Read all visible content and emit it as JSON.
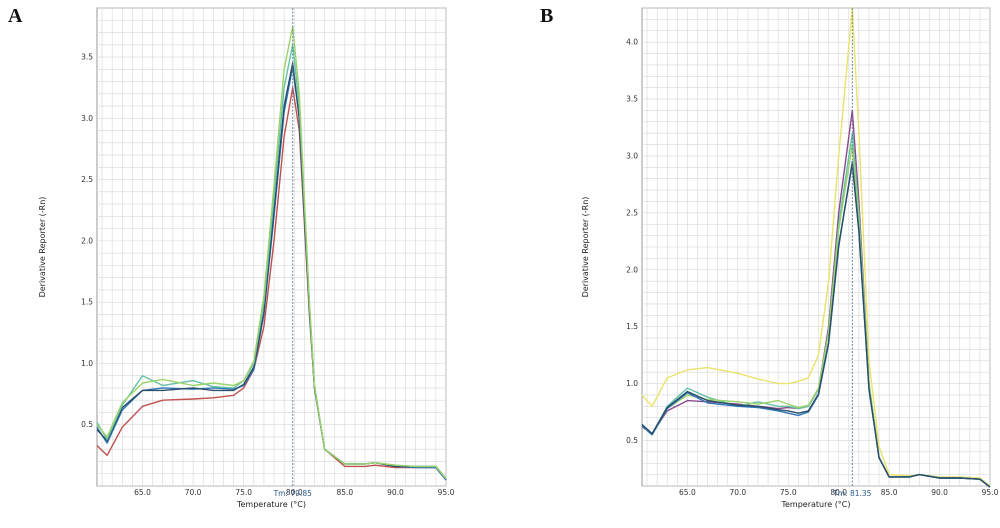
{
  "chart_data": [
    {
      "type": "line",
      "panel_label": "A",
      "xlabel": "Temperature (°C)",
      "ylabel": "Derivative Reporter (-Rn)",
      "xlim": [
        60.5,
        95.0
      ],
      "ylim": [
        0.0,
        3.9
      ],
      "xticks": [
        65.0,
        70.0,
        75.0,
        80.0,
        85.0,
        90.0,
        95.0
      ],
      "xtick_labels": [
        "65.0",
        "70.0",
        "75.0",
        "80.0",
        "85.0",
        "90.0",
        "95.0"
      ],
      "yticks": [
        0.5,
        1.0,
        1.5,
        2.0,
        2.5,
        3.0,
        3.5
      ],
      "ytick_labels": [
        "0.5",
        "1.0",
        "1.5",
        "2.0",
        "2.5",
        "3.0",
        "3.5"
      ],
      "tm_x": 79.85,
      "tm_label": "Tm: 79.85",
      "grid": true,
      "series": [
        {
          "color": "#c0504d",
          "x": [
            60.5,
            61.5,
            63,
            65,
            67,
            70,
            72,
            74,
            75,
            76,
            77,
            78,
            79,
            79.85,
            80.5,
            81.5,
            82,
            83,
            85,
            87,
            88,
            90,
            92,
            94,
            95
          ],
          "y": [
            0.33,
            0.25,
            0.48,
            0.65,
            0.7,
            0.71,
            0.72,
            0.74,
            0.8,
            0.95,
            1.3,
            2.0,
            2.85,
            3.25,
            2.9,
            1.4,
            0.8,
            0.3,
            0.16,
            0.16,
            0.17,
            0.15,
            0.15,
            0.15,
            0.05
          ]
        },
        {
          "color": "#2e75b6",
          "x": [
            60.5,
            61.5,
            63,
            65,
            67,
            70,
            72,
            74,
            75,
            76,
            77,
            78,
            79,
            79.85,
            80.5,
            81.5,
            82,
            83,
            85,
            87,
            88,
            90,
            92,
            94,
            95
          ],
          "y": [
            0.48,
            0.35,
            0.62,
            0.78,
            0.8,
            0.79,
            0.8,
            0.79,
            0.82,
            0.95,
            1.4,
            2.2,
            3.05,
            3.42,
            3.0,
            1.45,
            0.8,
            0.3,
            0.18,
            0.18,
            0.19,
            0.16,
            0.15,
            0.15,
            0.05
          ]
        },
        {
          "color": "#2a4d69",
          "x": [
            60.5,
            61.5,
            63,
            65,
            67,
            70,
            72,
            74,
            75,
            76,
            77,
            78,
            79,
            79.85,
            80.5,
            81.5,
            82,
            83,
            85,
            87,
            88,
            90,
            92,
            94,
            95
          ],
          "y": [
            0.46,
            0.37,
            0.64,
            0.78,
            0.78,
            0.8,
            0.78,
            0.78,
            0.83,
            0.97,
            1.42,
            2.25,
            3.1,
            3.45,
            3.0,
            1.45,
            0.8,
            0.3,
            0.18,
            0.18,
            0.19,
            0.16,
            0.16,
            0.16,
            0.06
          ]
        },
        {
          "color": "#66c2a5",
          "x": [
            60.5,
            61.5,
            63,
            65,
            67,
            70,
            72,
            74,
            75,
            76,
            77,
            78,
            79,
            79.85,
            80.5,
            81.5,
            82,
            83,
            85,
            87,
            88,
            90,
            92,
            94,
            95
          ],
          "y": [
            0.52,
            0.38,
            0.66,
            0.9,
            0.82,
            0.86,
            0.81,
            0.8,
            0.86,
            1.0,
            1.5,
            2.35,
            3.25,
            3.6,
            3.1,
            1.5,
            0.82,
            0.3,
            0.18,
            0.18,
            0.19,
            0.17,
            0.16,
            0.16,
            0.06
          ]
        },
        {
          "color": "#9bd36a",
          "x": [
            60.5,
            61.5,
            63,
            65,
            67,
            70,
            72,
            74,
            75,
            76,
            77,
            78,
            79,
            79.85,
            80.5,
            81.5,
            82,
            83,
            85,
            87,
            88,
            90,
            92,
            94,
            95
          ],
          "y": [
            0.5,
            0.4,
            0.68,
            0.84,
            0.87,
            0.82,
            0.84,
            0.82,
            0.86,
            1.02,
            1.55,
            2.45,
            3.4,
            3.75,
            3.2,
            1.5,
            0.82,
            0.3,
            0.18,
            0.18,
            0.19,
            0.17,
            0.16,
            0.16,
            0.06
          ]
        }
      ]
    },
    {
      "type": "line",
      "panel_label": "B",
      "xlabel": "Temperature (°C)",
      "ylabel": "Derivative Reporter (-Rn)",
      "xlim": [
        60.5,
        95.0
      ],
      "ylim": [
        0.1,
        4.3
      ],
      "xticks": [
        65.0,
        70.0,
        75.0,
        80.0,
        85.0,
        90.0,
        95.0
      ],
      "xtick_labels": [
        "65.0",
        "70.0",
        "75.0",
        "80.0",
        "85.0",
        "90.0",
        "95.0"
      ],
      "yticks": [
        0.5,
        1.0,
        1.5,
        2.0,
        2.5,
        3.0,
        3.5,
        4.0
      ],
      "ytick_labels": [
        "0.5",
        "1.0",
        "1.5",
        "2.0",
        "2.5",
        "3.0",
        "3.5",
        "4.0"
      ],
      "tm_x": 81.35,
      "tm_label": "Tm: 81.35",
      "grid": true,
      "series": [
        {
          "color": "#e8e36a",
          "x": [
            60.5,
            61.5,
            63,
            65,
            67,
            70,
            72,
            74,
            75,
            76,
            77,
            78,
            79,
            80,
            81.35,
            82,
            83,
            84,
            85,
            87,
            88,
            90,
            92,
            94,
            95
          ],
          "y": [
            0.9,
            0.8,
            1.05,
            1.12,
            1.14,
            1.09,
            1.04,
            1.0,
            1.0,
            1.02,
            1.05,
            1.25,
            1.9,
            3.0,
            4.3,
            3.2,
            1.2,
            0.45,
            0.2,
            0.19,
            0.2,
            0.18,
            0.18,
            0.17,
            0.1
          ]
        },
        {
          "color": "#8a4a8a",
          "x": [
            60.5,
            61.5,
            63,
            65,
            67,
            70,
            72,
            74,
            75,
            76,
            77,
            78,
            79,
            80,
            81.35,
            82,
            83,
            84,
            85,
            87,
            88,
            90,
            92,
            94,
            95
          ],
          "y": [
            0.62,
            0.56,
            0.76,
            0.85,
            0.84,
            0.82,
            0.8,
            0.78,
            0.79,
            0.78,
            0.8,
            0.95,
            1.5,
            2.5,
            3.4,
            2.6,
            1.0,
            0.35,
            0.18,
            0.18,
            0.2,
            0.17,
            0.17,
            0.16,
            0.09
          ]
        },
        {
          "color": "#66c2a5",
          "x": [
            60.5,
            61.5,
            63,
            65,
            67,
            70,
            72,
            74,
            75,
            76,
            77,
            78,
            79,
            80,
            81.35,
            82,
            83,
            84,
            85,
            87,
            88,
            90,
            92,
            94,
            95
          ],
          "y": [
            0.64,
            0.55,
            0.8,
            0.96,
            0.88,
            0.8,
            0.84,
            0.8,
            0.8,
            0.78,
            0.8,
            0.95,
            1.45,
            2.4,
            3.2,
            2.5,
            1.0,
            0.35,
            0.18,
            0.18,
            0.2,
            0.17,
            0.17,
            0.16,
            0.09
          ]
        },
        {
          "color": "#9bd36a",
          "x": [
            60.5,
            61.5,
            63,
            65,
            67,
            70,
            72,
            74,
            75,
            76,
            77,
            78,
            79,
            80,
            81.35,
            82,
            83,
            84,
            85,
            87,
            88,
            90,
            92,
            94,
            95
          ],
          "y": [
            0.63,
            0.55,
            0.78,
            0.9,
            0.86,
            0.84,
            0.82,
            0.85,
            0.82,
            0.79,
            0.81,
            0.96,
            1.45,
            2.35,
            3.1,
            2.45,
            1.0,
            0.35,
            0.18,
            0.18,
            0.2,
            0.17,
            0.17,
            0.16,
            0.09
          ]
        },
        {
          "color": "#2e75b6",
          "x": [
            60.5,
            61.5,
            63,
            65,
            67,
            70,
            72,
            74,
            75,
            76,
            77,
            78,
            79,
            80,
            81.35,
            82,
            83,
            84,
            85,
            87,
            88,
            90,
            92,
            94,
            95
          ],
          "y": [
            0.63,
            0.55,
            0.78,
            0.92,
            0.83,
            0.8,
            0.79,
            0.76,
            0.74,
            0.72,
            0.75,
            0.9,
            1.35,
            2.2,
            2.95,
            2.35,
            0.95,
            0.35,
            0.18,
            0.18,
            0.2,
            0.17,
            0.17,
            0.16,
            0.09
          ]
        },
        {
          "color": "#2a4d69",
          "x": [
            60.5,
            61.5,
            63,
            65,
            67,
            70,
            72,
            74,
            75,
            76,
            77,
            78,
            79,
            80,
            81.35,
            82,
            83,
            84,
            85,
            87,
            88,
            90,
            92,
            94,
            95
          ],
          "y": [
            0.64,
            0.56,
            0.79,
            0.93,
            0.85,
            0.81,
            0.8,
            0.77,
            0.76,
            0.74,
            0.76,
            0.91,
            1.36,
            2.22,
            2.93,
            2.33,
            0.95,
            0.35,
            0.18,
            0.18,
            0.2,
            0.17,
            0.17,
            0.16,
            0.09
          ]
        }
      ]
    }
  ]
}
